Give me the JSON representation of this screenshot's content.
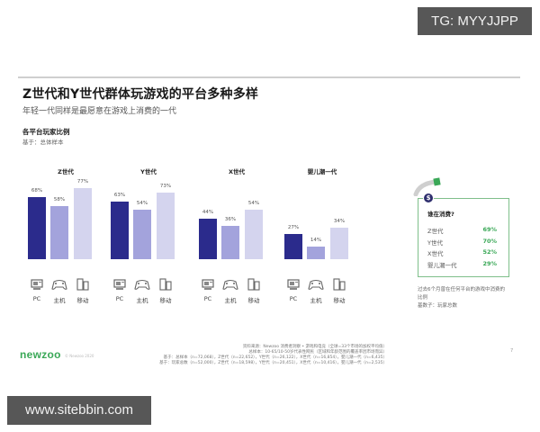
{
  "watermarks": {
    "tg": "TG: MYYJJPP",
    "site": "www.sitebbin.com"
  },
  "header": {
    "title": "Z世代和Y世代群体玩游戏的平台多种多样",
    "subtitle": "年轻一代同样是最愿意在游戏上消费的一代"
  },
  "section": {
    "title": "各平台玩家比例",
    "base": "基于：总体样本"
  },
  "chart_data": {
    "type": "bar",
    "title": "各平台玩家比例",
    "subtitle": "基于：总体样本",
    "categories": [
      "PC",
      "主机",
      "移动"
    ],
    "groups": [
      "Z世代",
      "Y世代",
      "X世代",
      "婴儿潮一代"
    ],
    "series": [
      {
        "name": "Z世代",
        "values": [
          68,
          58,
          77
        ]
      },
      {
        "name": "Y世代",
        "values": [
          63,
          54,
          73
        ]
      },
      {
        "name": "X世代",
        "values": [
          44,
          36,
          54
        ]
      },
      {
        "name": "婴儿潮一代",
        "values": [
          27,
          14,
          34
        ]
      }
    ],
    "unit": "%",
    "bar_colors": [
      "#2b2b8c",
      "#a3a3dc",
      "#d4d4ee"
    ],
    "ylim": [
      0,
      100
    ],
    "grid": false,
    "legend": "none"
  },
  "groups": [
    {
      "title": "Z世代",
      "labels": [
        "68%",
        "58%",
        "77%"
      ]
    },
    {
      "title": "Y世代",
      "labels": [
        "63%",
        "54%",
        "73%"
      ]
    },
    {
      "title": "X世代",
      "labels": [
        "44%",
        "36%",
        "54%"
      ]
    },
    {
      "title": "婴儿潮一代",
      "labels": [
        "27%",
        "14%",
        "34%"
      ]
    }
  ],
  "platforms": [
    {
      "label": "PC",
      "icon": "pc-icon"
    },
    {
      "label": "主机",
      "icon": "gamepad-icon"
    },
    {
      "label": "移动",
      "icon": "mobile-icon"
    }
  ],
  "callout": {
    "badge": "$",
    "title": "谁在消费?",
    "rows": [
      {
        "label": "Z世代",
        "value": "69%"
      },
      {
        "label": "Y世代",
        "value": "70%"
      },
      {
        "label": "X世代",
        "value": "52%"
      },
      {
        "label": "婴儿潮一代",
        "value": "29%"
      }
    ],
    "note_line1": "过去6个月曾在任何平台的游戏中消费的",
    "note_line2": "比例",
    "note_line3": "基数子：玩家总数",
    "accent_color": "#3aa857"
  },
  "footer": {
    "brand": "newzoo",
    "brand_sub": "© Newzoo 2020",
    "source_line1": "资料来源：Newzoo 消费者洞察 • 游戏和电竞（全球=33个市场的加权平均值）",
    "source_line2": "总样本：10-65/10-50岁代表性网民（区域和年龄范围的覆盖率因市场而异）",
    "source_line3": "基于：总样本（n=72,068），Z世代（n=22,652），Y世代（n=26,122），X世代（n=16,854），婴儿潮一代（n=6,435）",
    "source_line4": "基于：玩家总数（n=52,000），Z世代（n=18,598），Y世代（n=20,451），X世代（n=10,416），婴儿潮一代（n=2,535）",
    "page_number": "7"
  }
}
